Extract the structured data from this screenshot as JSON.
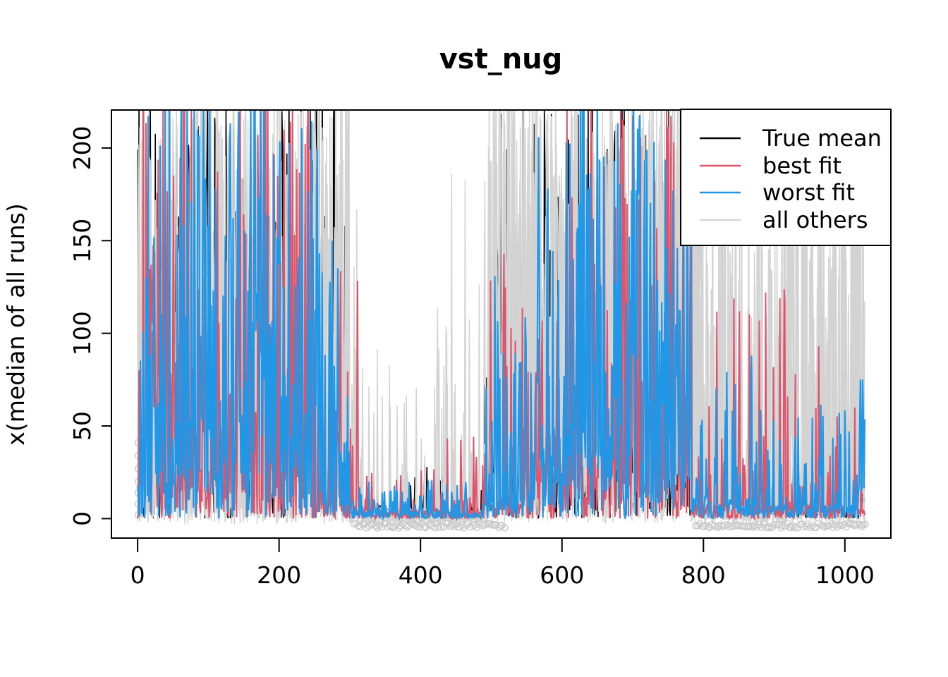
{
  "figure": {
    "title": "vst_nug",
    "background": "#ffffff",
    "frame_color": "#000000"
  },
  "chart_data": {
    "type": "line",
    "title": "vst_nug",
    "xlabel": "",
    "ylabel": "x(median of all runs)",
    "x_ticks": [
      0,
      200,
      400,
      600,
      800,
      1000
    ],
    "y_ticks": [
      0,
      50,
      100,
      150,
      200
    ],
    "xlim": [
      -37,
      1065
    ],
    "ylim": [
      -10.5,
      220.5
    ],
    "x_data_range": [
      0,
      1028
    ],
    "clipped_at_top": true,
    "grid": false,
    "legend": {
      "position": "topright",
      "items": [
        {
          "name": "true-mean",
          "label": "True mean",
          "color": "#000000"
        },
        {
          "name": "best-fit",
          "label": "best fit",
          "color": "#DF536B"
        },
        {
          "name": "worst-fit",
          "label": "worst fit",
          "color": "#2297E6"
        },
        {
          "name": "all-others",
          "label": "all others",
          "color": "#D3D3D3"
        }
      ]
    },
    "segment_format": "[x_start, x_end, spike_peak, spike_density, baseline] — noisy spiky series read from plot; spikes above ~220 are clipped at the top frame",
    "series": [
      {
        "name": "True mean",
        "color": "#000000",
        "passes": 1,
        "width": 1.6,
        "segments": [
          [
            0,
            300,
            240,
            0.5,
            30
          ],
          [
            300,
            490,
            30,
            0.15,
            5
          ],
          [
            490,
            800,
            240,
            0.5,
            30
          ],
          [
            800,
            1028,
            80,
            0.2,
            10
          ]
        ],
        "peaks": []
      },
      {
        "name": "all others",
        "color": "#D3D3D3",
        "passes": 5,
        "width": 1.5,
        "below_zero_fuzz": 3.5,
        "segments": [
          [
            0,
            300,
            240,
            0.55,
            45
          ],
          [
            300,
            318,
            180,
            0.13,
            18
          ],
          [
            318,
            420,
            95,
            0.07,
            7
          ],
          [
            420,
            495,
            200,
            0.05,
            7
          ],
          [
            495,
            800,
            240,
            0.6,
            55
          ],
          [
            800,
            908,
            235,
            0.17,
            18
          ],
          [
            908,
            1028,
            240,
            0.3,
            30
          ]
        ],
        "peaks": []
      },
      {
        "name": "best fit",
        "color": "#DF536B",
        "passes": 1,
        "width": 2,
        "segments": [
          [
            0,
            8,
            90,
            0.5,
            20
          ],
          [
            8,
            252,
            240,
            0.45,
            28
          ],
          [
            252,
            312,
            135,
            0.3,
            12
          ],
          [
            312,
            488,
            46,
            0.12,
            5
          ],
          [
            488,
            562,
            145,
            0.32,
            14
          ],
          [
            562,
            786,
            240,
            0.5,
            30
          ],
          [
            786,
            918,
            125,
            0.18,
            9
          ],
          [
            918,
            972,
            95,
            0.2,
            9
          ],
          [
            972,
            1028,
            65,
            0.12,
            7
          ]
        ],
        "peaks": [
          [
            2,
            80
          ],
          [
            642,
            205
          ],
          [
            758,
            203
          ],
          [
            888,
            122
          ],
          [
            930,
            78
          ],
          [
            963,
            93
          ],
          [
            1014,
            60
          ]
        ]
      },
      {
        "name": "worst fit",
        "color": "#2297E6",
        "passes": 1,
        "width": 2.2,
        "segments": [
          [
            0,
            10,
            130,
            0.45,
            18
          ],
          [
            10,
            258,
            240,
            0.56,
            40
          ],
          [
            258,
            302,
            152,
            0.4,
            16
          ],
          [
            302,
            490,
            22,
            0.3,
            4
          ],
          [
            490,
            562,
            132,
            0.35,
            15
          ],
          [
            562,
            784,
            240,
            0.56,
            38
          ],
          [
            784,
            872,
            95,
            0.28,
            12
          ],
          [
            872,
            1016,
            62,
            0.22,
            8
          ],
          [
            1016,
            1028,
            78,
            0.5,
            22
          ]
        ],
        "peaks": [
          [
            12,
            130
          ],
          [
            275,
            150
          ],
          [
            868,
            88
          ],
          [
            1022,
            75
          ]
        ]
      }
    ],
    "zero_line_markers": {
      "shape": "open-circle",
      "color": "#C9C9C9",
      "radius": 4.5,
      "clusters": [
        {
          "x0": 305,
          "x1": 520,
          "step": 3
        },
        {
          "x0": 788,
          "x1": 1028,
          "step": 3
        }
      ],
      "stacks": [
        {
          "x": 1,
          "values": [
            2,
            8,
            14,
            20,
            27,
            34,
            41
          ]
        },
        {
          "x": 1024,
          "values": [
            3,
            10,
            17,
            24,
            31
          ]
        }
      ]
    }
  }
}
